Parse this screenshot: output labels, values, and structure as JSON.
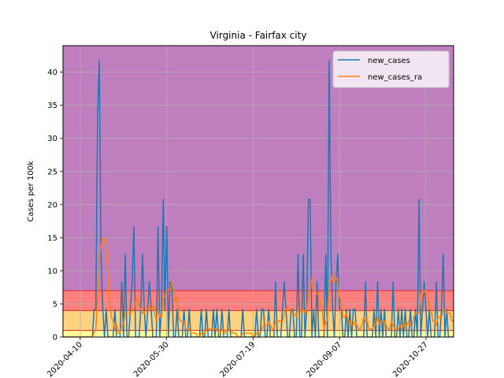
{
  "chart_data": {
    "type": "line",
    "title": "Virginia - Fairfax city",
    "xlabel": "",
    "ylabel": "Cases per 100k",
    "x_start": "2020-03-31",
    "x_end": "2020-11-12",
    "xlim": [
      "2020-03-31",
      "2020-11-12"
    ],
    "ylim": [
      0,
      44
    ],
    "grid": true,
    "legend_position": "top-right",
    "x_tick_labels": [
      "2020-04-10",
      "2020-05-30",
      "2020-07-19",
      "2020-09-07",
      "2020-10-27"
    ],
    "y_ticks": [
      0,
      5,
      10,
      15,
      20,
      25,
      30,
      35,
      40
    ],
    "y_tick_labels": [
      "0",
      "5",
      "10",
      "15",
      "20",
      "25",
      "30",
      "35",
      "40"
    ],
    "bands": [
      {
        "from": 0,
        "to": 1,
        "color": "#ffff99"
      },
      {
        "from": 1,
        "to": 4,
        "color": "#ffd27f"
      },
      {
        "from": 4,
        "to": 7,
        "color": "#ff7f7f"
      },
      {
        "from": 7,
        "to": 44,
        "color": "#bf7fbf"
      }
    ],
    "series": [
      {
        "name": "new_cases",
        "color": "#1f77b4",
        "values": [
          0,
          0,
          0,
          0,
          0,
          0,
          0,
          0,
          0,
          0,
          0,
          0,
          0,
          0,
          0,
          0,
          0,
          0,
          4.2,
          4.2,
          33.3,
          41.7,
          12.5,
          4.2,
          0,
          4.2,
          0,
          0,
          0,
          0,
          4.2,
          0,
          0,
          0,
          8.3,
          0,
          12.5,
          0,
          0,
          4.2,
          8.3,
          16.7,
          0,
          0,
          0,
          4.2,
          12.5,
          4.2,
          0,
          4.2,
          8.3,
          4.2,
          0,
          0,
          0,
          16.7,
          0,
          4.2,
          20.8,
          4.2,
          16.7,
          0,
          8.3,
          8.3,
          0,
          0,
          4.2,
          0,
          0,
          0,
          4.2,
          0,
          0,
          4.2,
          0,
          0,
          0,
          0,
          0,
          0,
          4.2,
          0,
          0,
          4.2,
          0,
          0,
          0,
          4.2,
          0,
          4.2,
          0,
          0,
          4.2,
          0,
          0,
          0,
          4.2,
          0,
          0,
          0,
          0,
          0,
          0,
          0,
          4.2,
          0,
          0,
          0,
          0,
          0,
          0,
          0,
          4.2,
          0,
          0,
          4.2,
          4.2,
          0,
          0,
          4.2,
          0,
          0,
          0,
          8.3,
          0,
          0,
          0,
          4.2,
          8.3,
          4.2,
          0,
          0,
          4.2,
          4.2,
          0,
          0,
          12.5,
          0,
          0,
          12.5,
          0,
          4.2,
          20.8,
          20.8,
          0,
          4.2,
          0,
          8.3,
          0,
          0,
          0,
          0,
          12.5,
          0,
          41.7,
          12.5,
          4.2,
          0,
          8.3,
          12.5,
          4.2,
          4.2,
          0,
          0,
          4.2,
          0,
          4.2,
          0,
          4.2,
          4.2,
          0,
          0,
          0,
          0,
          0,
          8.3,
          0,
          0,
          0,
          0,
          4.2,
          0,
          8.3,
          0,
          4.2,
          0,
          4.2,
          0,
          0,
          0,
          0,
          8.3,
          0,
          0,
          4.2,
          0,
          4.2,
          0,
          4.2,
          0,
          0,
          4.2,
          0,
          0,
          4.2,
          0,
          20.8,
          0,
          4.2,
          8.3,
          4.2,
          0,
          4.2,
          0,
          0,
          0,
          8.3,
          0,
          0,
          4.2,
          12.5,
          0,
          4.2,
          0,
          0,
          0,
          0,
          4.2,
          12.5,
          12.5,
          0,
          12.5
        ]
      },
      {
        "name": "new_cases_ra",
        "color": "#ff7f0e",
        "values": [
          0,
          0,
          0,
          0,
          0,
          0,
          0,
          0,
          0,
          0,
          0,
          0,
          0,
          0,
          0,
          0,
          0,
          0,
          0.6,
          1.2,
          6.0,
          11.9,
          13.7,
          14.9,
          14.3,
          14.9,
          11.3,
          5.4,
          3.0,
          2.4,
          1.2,
          1.8,
          0.6,
          0.6,
          1.8,
          1.8,
          3.6,
          3.6,
          3.6,
          3.6,
          4.2,
          4.2,
          5.4,
          6.0,
          4.8,
          4.2,
          3.6,
          3.6,
          4.2,
          4.2,
          4.2,
          4.2,
          4.8,
          3.6,
          2.4,
          4.2,
          3.0,
          3.0,
          6.0,
          6.0,
          7.1,
          7.1,
          7.1,
          8.3,
          7.1,
          5.4,
          6.0,
          3.0,
          2.4,
          2.4,
          2.4,
          1.2,
          1.2,
          1.2,
          0.6,
          0.6,
          0.6,
          0.6,
          0,
          0,
          0.6,
          0.6,
          0.6,
          1.2,
          1.2,
          1.2,
          1.2,
          1.2,
          1.2,
          1.2,
          0.6,
          0.6,
          1.2,
          1.2,
          0.6,
          0.6,
          1.2,
          1.2,
          0.6,
          0.6,
          0.6,
          0,
          0,
          0,
          0.6,
          0.6,
          0.6,
          0.6,
          0.6,
          0.6,
          0,
          0,
          0.6,
          0.6,
          0.6,
          1.2,
          1.8,
          1.8,
          1.8,
          2.4,
          1.8,
          1.2,
          1.2,
          2.4,
          2.4,
          2.4,
          2.4,
          2.4,
          3.6,
          4.2,
          4.2,
          4.2,
          4.2,
          3.6,
          3.6,
          3.0,
          4.2,
          4.2,
          3.6,
          4.2,
          3.6,
          4.2,
          6.0,
          7.1,
          8.9,
          7.7,
          7.1,
          6.5,
          6.5,
          4.8,
          4.2,
          1.2,
          2.4,
          2.4,
          8.3,
          8.3,
          9.5,
          8.3,
          8.9,
          8.3,
          6.0,
          5.4,
          3.0,
          3.0,
          3.6,
          2.4,
          2.4,
          1.8,
          1.8,
          2.4,
          1.8,
          1.2,
          1.2,
          1.8,
          3.0,
          2.4,
          2.4,
          1.2,
          1.2,
          1.2,
          1.8,
          1.8,
          3.0,
          1.8,
          2.4,
          2.4,
          2.4,
          1.8,
          1.2,
          1.2,
          2.4,
          1.8,
          1.2,
          1.2,
          1.2,
          1.8,
          1.2,
          1.8,
          1.8,
          1.8,
          2.4,
          1.8,
          1.8,
          3.0,
          3.6,
          3.6,
          3.6,
          6.5,
          6.5,
          7.1,
          6.5,
          6.5,
          4.2,
          4.2,
          2.4,
          2.4,
          1.8,
          3.0,
          3.0,
          3.0,
          4.2,
          4.2,
          3.6,
          3.6,
          3.6,
          2.4,
          2.4,
          1.8,
          3.0,
          4.2,
          4.2,
          5.4,
          7.1
        ]
      }
    ]
  }
}
